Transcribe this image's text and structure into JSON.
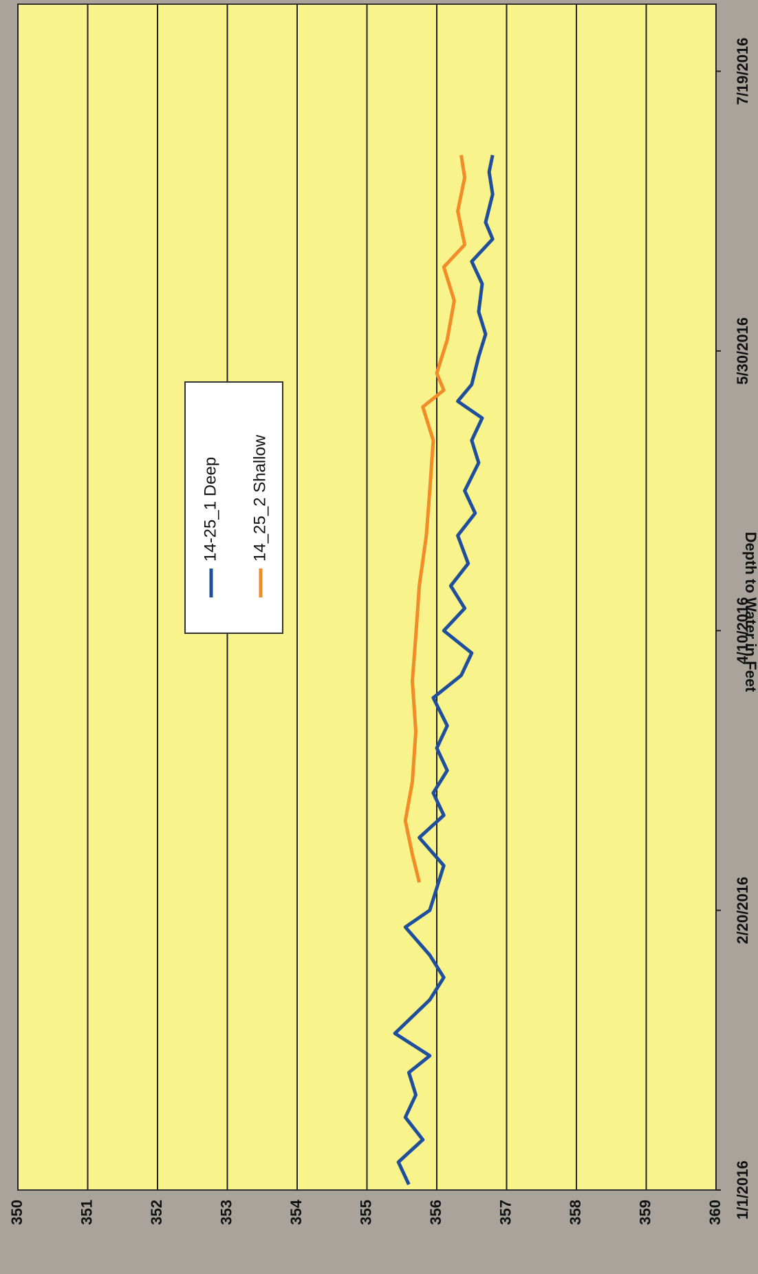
{
  "chart_data": {
    "type": "line",
    "y_title": "Depth to Water in Feet",
    "ylim": [
      350,
      360
    ],
    "y_reversed": true,
    "yticks": [
      350,
      351,
      352,
      353,
      354,
      355,
      356,
      357,
      358,
      359,
      360
    ],
    "xlim": [
      "2016-01-01",
      "2016-07-31"
    ],
    "xticks": [
      {
        "value": "2016-01-01",
        "label": "1/1/2016"
      },
      {
        "value": "2016-02-20",
        "label": "2/20/2016"
      },
      {
        "value": "2016-04-10",
        "label": "4/10/2016"
      },
      {
        "value": "2016-05-30",
        "label": "5/30/2016"
      },
      {
        "value": "2016-07-19",
        "label": "7/19/2016"
      }
    ],
    "grid": true,
    "series": [
      {
        "name": "14-25_1 Deep",
        "color": "#1f4e9c",
        "x": [
          "2016-01-02",
          "2016-01-06",
          "2016-01-10",
          "2016-01-14",
          "2016-01-18",
          "2016-01-22",
          "2016-01-25",
          "2016-01-29",
          "2016-02-04",
          "2016-02-08",
          "2016-02-12",
          "2016-02-17",
          "2016-02-20",
          "2016-02-24",
          "2016-02-28",
          "2016-03-04",
          "2016-03-08",
          "2016-03-12",
          "2016-03-16",
          "2016-03-20",
          "2016-03-24",
          "2016-03-29",
          "2016-04-02",
          "2016-04-06",
          "2016-04-10",
          "2016-04-14",
          "2016-04-18",
          "2016-04-22",
          "2016-04-27",
          "2016-05-01",
          "2016-05-05",
          "2016-05-10",
          "2016-05-14",
          "2016-05-18",
          "2016-05-21",
          "2016-05-24",
          "2016-05-29",
          "2016-06-02",
          "2016-06-06",
          "2016-06-11",
          "2016-06-15",
          "2016-06-19",
          "2016-06-22",
          "2016-06-27",
          "2016-07-01",
          "2016-07-04"
        ],
        "values": [
          355.6,
          355.45,
          355.8,
          355.55,
          355.7,
          355.6,
          355.9,
          355.4,
          355.9,
          356.1,
          355.9,
          355.55,
          355.9,
          356.0,
          356.1,
          355.75,
          356.1,
          355.95,
          356.15,
          356.0,
          356.15,
          355.95,
          356.35,
          356.5,
          356.1,
          356.4,
          356.2,
          356.45,
          356.3,
          356.55,
          356.4,
          356.6,
          356.5,
          356.65,
          356.3,
          356.5,
          356.6,
          356.7,
          356.6,
          356.65,
          356.5,
          356.8,
          356.7,
          356.8,
          356.75,
          356.8
        ]
      },
      {
        "name": "14_25_2 Shallow",
        "color": "#f28c28",
        "x": [
          "2016-02-25",
          "2016-03-01",
          "2016-03-07",
          "2016-03-14",
          "2016-03-23",
          "2016-04-01",
          "2016-04-09",
          "2016-04-18",
          "2016-04-27",
          "2016-05-05",
          "2016-05-14",
          "2016-05-20",
          "2016-05-23",
          "2016-05-26",
          "2016-06-01",
          "2016-06-08",
          "2016-06-14",
          "2016-06-18",
          "2016-06-24",
          "2016-06-30",
          "2016-07-04"
        ],
        "values": [
          355.75,
          355.65,
          355.55,
          355.65,
          355.7,
          355.65,
          355.7,
          355.75,
          355.85,
          355.9,
          355.95,
          355.8,
          356.1,
          356.0,
          356.15,
          356.25,
          356.1,
          356.4,
          356.3,
          356.4,
          356.35
        ]
      }
    ]
  }
}
